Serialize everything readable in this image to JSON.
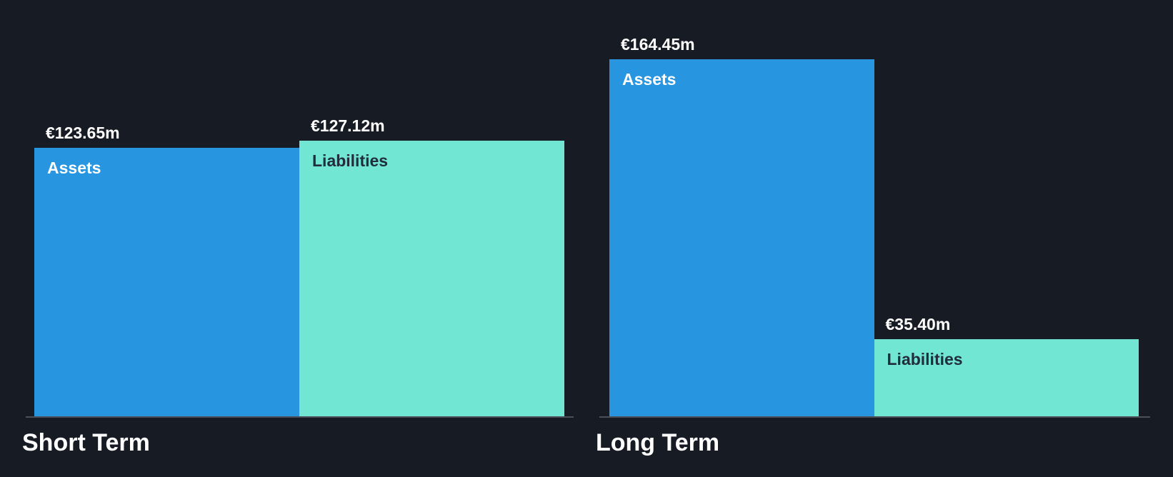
{
  "chart_data": {
    "type": "bar",
    "title": "",
    "xlabel": "",
    "ylabel": "",
    "unit": "€ millions",
    "ylim": [
      0,
      170
    ],
    "grid": false,
    "legend_position": "none",
    "axis_visible": false,
    "categories": [
      "Short Term",
      "Long Term"
    ],
    "series": [
      {
        "name": "Assets",
        "values": [
          123.65,
          164.45
        ]
      },
      {
        "name": "Liabilities",
        "values": [
          127.12,
          35.4
        ]
      }
    ],
    "groups": [
      {
        "label": "Short Term",
        "bars": [
          {
            "name": "Assets",
            "value": 123.65,
            "display": "€123.65m",
            "color_key": "assets"
          },
          {
            "name": "Liabilities",
            "value": 127.12,
            "display": "€127.12m",
            "color_key": "liabilities"
          }
        ]
      },
      {
        "label": "Long Term",
        "bars": [
          {
            "name": "Assets",
            "value": 164.45,
            "display": "€164.45m",
            "color_key": "assets"
          },
          {
            "name": "Liabilities",
            "value": 35.4,
            "display": "€35.40m",
            "color_key": "liabilities"
          }
        ]
      }
    ]
  },
  "colors": {
    "background": "#161B24",
    "assets": "#2795DF",
    "liabilities": "#71E6D2",
    "value_label_text": "#FFFFFF",
    "assets_name_text": "#FFFFFF",
    "liabilities_name_text": "#212D3B",
    "axis_line": "#4B5058",
    "group_label_text": "#FFFFFF"
  }
}
